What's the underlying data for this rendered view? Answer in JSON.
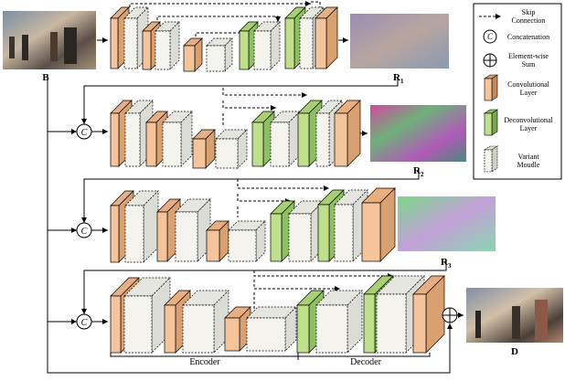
{
  "labels": {
    "input": "B",
    "r1": "R",
    "r1_sub": "1",
    "r2": "R",
    "r2_sub": "2",
    "r3": "R",
    "r3_sub": "3",
    "output": "D",
    "encoder": "Encoder",
    "decoder": "Decoder",
    "concat_symbol": "C"
  },
  "legend": {
    "skip": "Skip Connection",
    "concat": "Concatenation",
    "sum": "Element-wise Sum",
    "conv": "Convolutional Layer",
    "deconv": "Deconvolutional Layer",
    "variant": "Variant Moudle"
  },
  "colors": {
    "conv_front": "#f5c49a",
    "conv_side": "#d9a070",
    "deconv_front": "#bfe08a",
    "deconv_side": "#8fc060",
    "variant_front": "#f4f3ee",
    "variant_side": "#dcdcd6",
    "line": "#000000"
  }
}
